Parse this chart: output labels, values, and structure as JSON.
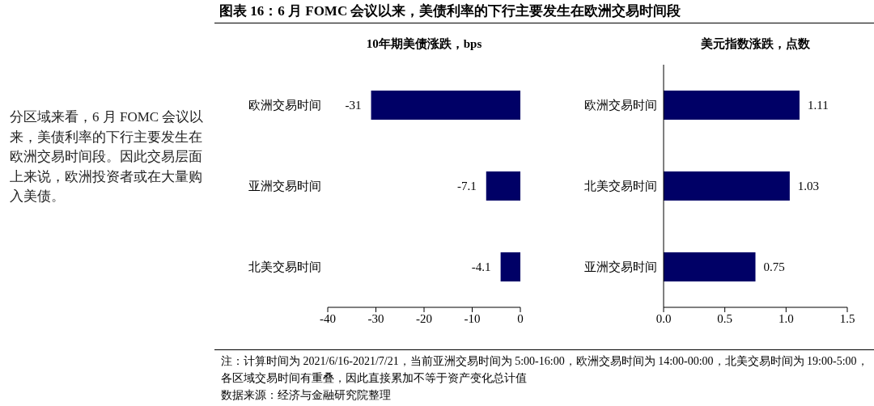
{
  "chart_data": [
    {
      "type": "bar",
      "orientation": "horizontal",
      "title": "10年期美债涨跌，bps",
      "categories": [
        "欧洲交易时间",
        "亚洲交易时间",
        "北美交易时间"
      ],
      "values": [
        -31,
        -7.1,
        -4.1
      ],
      "color": "#000066",
      "xlim": [
        -40,
        0
      ],
      "xticks": [
        -40,
        -30,
        -20,
        -10,
        0
      ],
      "data_labels": true,
      "annotations": [
        "图表 16：6 月 FOMC 会议以来，美债利率的下行主要发生在欧洲交易时间段",
        "分区域来看，6 月 FOMC 会议以来，美债利率的下行主要发生在欧洲交易时间段。因此交易层面上来说，欧洲投资者或在大量购入美债。"
      ]
    },
    {
      "type": "bar",
      "orientation": "horizontal",
      "title": "美元指数涨跌，点数",
      "categories": [
        "欧洲交易时间",
        "北美交易时间",
        "亚洲交易时间"
      ],
      "values": [
        1.11,
        1.03,
        0.75
      ],
      "color": "#000066",
      "xlim": [
        0,
        1.5
      ],
      "xticks": [
        {
          "value": 0,
          "label": "0.0"
        },
        {
          "value": 0.5,
          "label": "0.5"
        },
        {
          "value": 1,
          "label": "1.0"
        },
        {
          "value": 1.5,
          "label": "1.5"
        }
      ],
      "data_labels": true,
      "annotations": [
        "注：计算时间为 2021/6/16-2021/7/21，当前亚洲交易时间为 5:00-16:00，欧洲交易时间为 14:00-00:00，北美交易时间为 19:00-5:00，各区域交易时间有重叠，因此直接累加不等于资产变化总计值",
        "数据来源：经济与金融研究院整理"
      ]
    }
  ]
}
